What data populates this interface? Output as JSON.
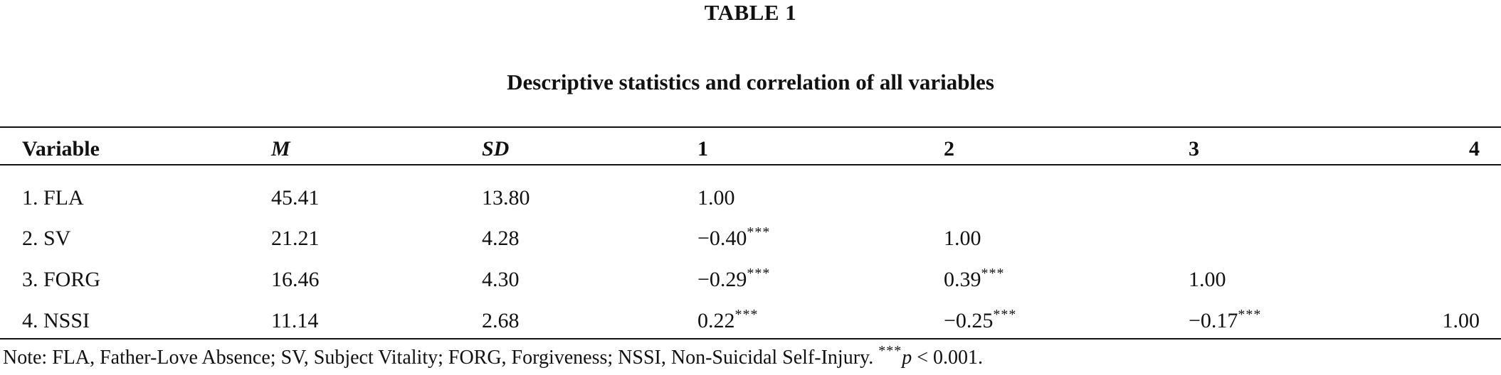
{
  "table": {
    "label": "TABLE 1",
    "title": "Descriptive statistics and correlation of all variables",
    "headers": [
      "Variable",
      "M",
      "SD",
      "1",
      "2",
      "3",
      "4"
    ],
    "rows": [
      {
        "variable": "1. FLA",
        "m": "45.41",
        "sd": "13.80",
        "c1": "1.00",
        "c1_sig": "",
        "c2": "",
        "c2_sig": "",
        "c3": "",
        "c3_sig": "",
        "c4": ""
      },
      {
        "variable": "2. SV",
        "m": "21.21",
        "sd": "4.28",
        "c1": "−0.40",
        "c1_sig": "***",
        "c2": "1.00",
        "c2_sig": "",
        "c3": "",
        "c3_sig": "",
        "c4": ""
      },
      {
        "variable": "3. FORG",
        "m": "16.46",
        "sd": "4.30",
        "c1": "−0.29",
        "c1_sig": "***",
        "c2": "0.39",
        "c2_sig": "***",
        "c3": "1.00",
        "c3_sig": "",
        "c4": ""
      },
      {
        "variable": "4. NSSI",
        "m": "11.14",
        "sd": "2.68",
        "c1": "0.22",
        "c1_sig": "***",
        "c2": "−0.25",
        "c2_sig": "***",
        "c3": "−0.17",
        "c3_sig": "***",
        "c4": "1.00"
      }
    ],
    "note": {
      "text": "Note: FLA, Father-Love Absence; SV, Subject Vitality; FORG, Forgiveness; NSSI, Non-Suicidal Self-Injury. ",
      "sig_marker": "***",
      "p_symbol": "p",
      "p_text": " < 0.001."
    }
  }
}
